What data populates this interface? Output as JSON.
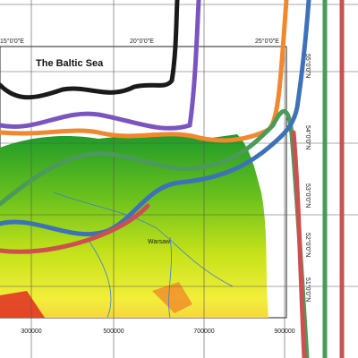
{
  "title": "The Baltic Sea",
  "place_labels": [
    "Warsaw"
  ],
  "bottom_axis": [
    "300000",
    "500000",
    "700000",
    "900000"
  ],
  "top_axis": [
    "15°0'0\"E",
    "20°0'0\"E",
    "25°0'0\"E"
  ],
  "right_axis": [
    "55°0'0\"N",
    "54°0'0\"N",
    "53°0'0\"N",
    "52°0'0\"N",
    "51°0'0\"N"
  ]
}
